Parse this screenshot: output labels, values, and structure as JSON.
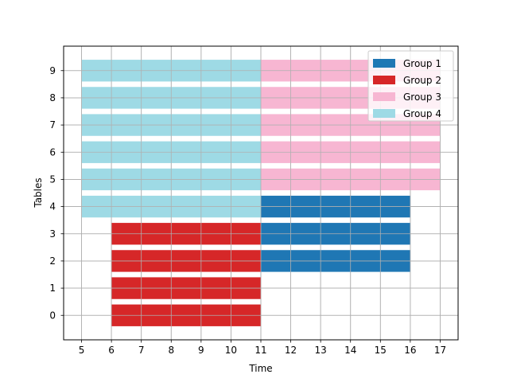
{
  "chart_data": {
    "type": "bar",
    "orientation": "horizontal",
    "title": "",
    "xlabel": "Time",
    "ylabel": "Tables",
    "xlim": [
      4.4,
      17.6
    ],
    "ylim": [
      -0.9,
      9.9
    ],
    "xticks": [
      5,
      6,
      7,
      8,
      9,
      10,
      11,
      12,
      13,
      14,
      15,
      16,
      17
    ],
    "yticks": [
      0,
      1,
      2,
      3,
      4,
      5,
      6,
      7,
      8,
      9
    ],
    "grid": true,
    "legend_position": "top-right",
    "series": [
      {
        "name": "Group 1",
        "color": "#1f77b4",
        "bars": [
          {
            "table": 2,
            "start": 11,
            "end": 16
          },
          {
            "table": 3,
            "start": 11,
            "end": 16
          },
          {
            "table": 4,
            "start": 11,
            "end": 16
          }
        ]
      },
      {
        "name": "Group 2",
        "color": "#d62728",
        "bars": [
          {
            "table": 0,
            "start": 6,
            "end": 11
          },
          {
            "table": 1,
            "start": 6,
            "end": 11
          },
          {
            "table": 2,
            "start": 6,
            "end": 11
          },
          {
            "table": 3,
            "start": 6,
            "end": 11
          }
        ]
      },
      {
        "name": "Group 3",
        "color": "#f7b6d2",
        "bars": [
          {
            "table": 5,
            "start": 11,
            "end": 17
          },
          {
            "table": 6,
            "start": 11,
            "end": 17
          },
          {
            "table": 7,
            "start": 11,
            "end": 17
          },
          {
            "table": 8,
            "start": 11,
            "end": 17
          },
          {
            "table": 9,
            "start": 11,
            "end": 17
          }
        ]
      },
      {
        "name": "Group 4",
        "color": "#9edae5",
        "bars": [
          {
            "table": 4,
            "start": 5,
            "end": 11
          },
          {
            "table": 5,
            "start": 5,
            "end": 11
          },
          {
            "table": 6,
            "start": 5,
            "end": 11
          },
          {
            "table": 7,
            "start": 5,
            "end": 11
          },
          {
            "table": 8,
            "start": 5,
            "end": 11
          },
          {
            "table": 9,
            "start": 5,
            "end": 11
          }
        ]
      }
    ]
  }
}
